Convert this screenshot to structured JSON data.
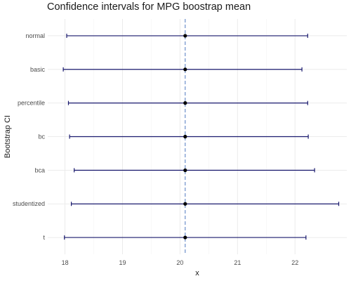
{
  "chart_data": {
    "type": "errorbar",
    "title": "Confidence intervals for MPG boostrap mean",
    "xlabel": "x",
    "ylabel": "Bootstrap CI",
    "xlim": [
      17.7,
      22.9
    ],
    "x_ticks": [
      "18",
      "19",
      "20",
      "21",
      "22"
    ],
    "x_tick_values": [
      18,
      19,
      20,
      21,
      22
    ],
    "reference_line": 20.09,
    "grid": true,
    "intervals": [
      {
        "label": "normal",
        "estimate": 20.09,
        "lower": 18.03,
        "upper": 22.22
      },
      {
        "label": "basic",
        "estimate": 20.09,
        "lower": 17.97,
        "upper": 22.12
      },
      {
        "label": "percentile",
        "estimate": 20.09,
        "lower": 18.06,
        "upper": 22.22
      },
      {
        "label": "bc",
        "estimate": 20.09,
        "lower": 18.08,
        "upper": 22.23
      },
      {
        "label": "bca",
        "estimate": 20.09,
        "lower": 18.16,
        "upper": 22.34
      },
      {
        "label": "studentized",
        "estimate": 20.09,
        "lower": 18.11,
        "upper": 22.76
      },
      {
        "label": "t",
        "estimate": 20.09,
        "lower": 17.99,
        "upper": 22.19
      }
    ],
    "colors": {
      "interval": "#1a1a6e",
      "point": "#000000",
      "reference": "#6b8fc9",
      "grid": "#ebebeb"
    }
  }
}
